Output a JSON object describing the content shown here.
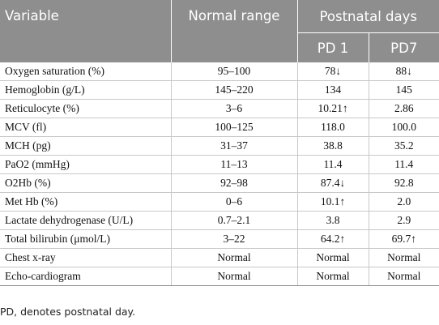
{
  "table": {
    "header": {
      "variable": "Variable",
      "normal_range": "Normal range",
      "group": "Postnatal days",
      "columns": [
        "PD 1",
        "PD7"
      ]
    },
    "rows": [
      [
        "Oxygen saturation (%)",
        "95–100",
        "78↓",
        "88↓"
      ],
      [
        "Hemoglobin (g/L)",
        "145–220",
        "134",
        "145"
      ],
      [
        "Reticulocyte (%)",
        "3–6",
        "10.21↑",
        "2.86"
      ],
      [
        "MCV (fl)",
        "100–125",
        "118.0",
        "100.0"
      ],
      [
        "MCH (pg)",
        "31–37",
        "38.8",
        "35.2"
      ],
      [
        "PaO2 (mmHg)",
        "11–13",
        "11.4",
        "11.4"
      ],
      [
        "O2Hb (%)",
        "92–98",
        "87.4↓",
        "92.8"
      ],
      [
        "Met Hb (%)",
        "0–6",
        "10.1↑",
        "2.0"
      ],
      [
        "Lactate dehydrogenase (U/L)",
        "0.7–2.1",
        "3.8",
        "2.9"
      ],
      [
        "Total bilirubin (μmol/L)",
        "3–22",
        "64.2↑",
        "69.7↑"
      ],
      [
        "Chest x-ray",
        "Normal",
        "Normal",
        "Normal"
      ],
      [
        "Echo-cardiogram",
        "Normal",
        "Normal",
        "Normal"
      ]
    ],
    "footnote": "PD, denotes postnatal day."
  }
}
